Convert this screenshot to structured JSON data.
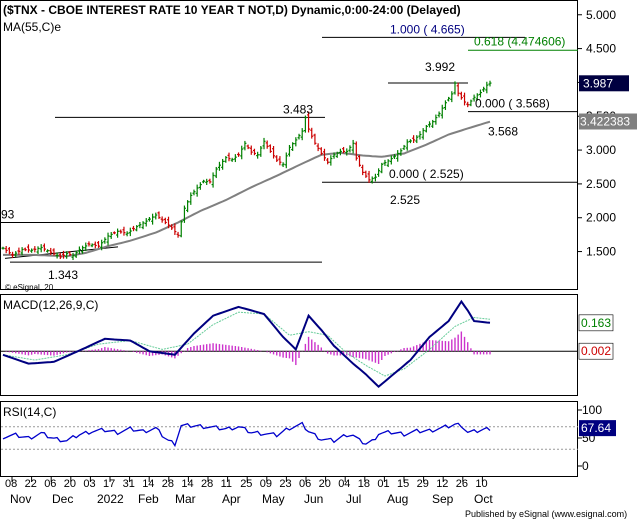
{
  "title": "($TNX - CBOE INTEREST RATE 10 YEAR T NOT,D) Dynamic,0:00-24:00 (Delayed)",
  "ma_label": "MA(55,C)e",
  "watermark": "© eSignal, 20",
  "footer": "Published by eSignal (www.esignal.com)",
  "colors": {
    "up_bar": "#008000",
    "down_bar": "#cc0000",
    "ma": "#808080",
    "macd_line": "#000080",
    "signal_line": "#66cc99",
    "histogram": "#cc33cc",
    "rsi_line": "#0000cc",
    "fib_618": "#008000",
    "fib_1000": "#000080",
    "price_tag_bg": "#000040",
    "ma_tag_bg": "#808080",
    "macd_tag_fg": "#008000",
    "hist_tag_fg": "#cc0000",
    "rsi_tag_bg": "#000080"
  },
  "chart_data": [
    {
      "type": "candlestick",
      "title": "$TNX daily",
      "y_ticks": [
        "5.000",
        "4.500",
        "4.000",
        "3.500",
        "3.000",
        "2.500",
        "2.000",
        "1.500"
      ],
      "ylim": [
        1.05,
        5.1
      ],
      "last_price": "3.987",
      "ma_last": "3.422383",
      "ma_period": 55,
      "x_date_labels": [
        "08",
        "22",
        "06",
        "20",
        "03",
        "17",
        "31",
        "14",
        "28",
        "14",
        "28",
        "11",
        "25",
        "09",
        "23",
        "06",
        "20",
        "04",
        "18",
        "01",
        "15",
        "29",
        "12",
        "26",
        "10"
      ],
      "x_month_labels": [
        "Nov",
        "Dec",
        "2022",
        "Feb",
        "Mar",
        "Apr",
        "May",
        "Jun",
        "Jul",
        "Aug",
        "Sep",
        "Oct"
      ],
      "close_path": [
        [
          0,
          1.55
        ],
        [
          3,
          1.45
        ],
        [
          6,
          1.53
        ],
        [
          9,
          1.52
        ],
        [
          12,
          1.56
        ],
        [
          15,
          1.49
        ],
        [
          18,
          1.42
        ],
        [
          20,
          1.47
        ],
        [
          22,
          1.44
        ],
        [
          24,
          1.53
        ],
        [
          27,
          1.61
        ],
        [
          30,
          1.58
        ],
        [
          33,
          1.73
        ],
        [
          36,
          1.8
        ],
        [
          39,
          1.77
        ],
        [
          42,
          1.87
        ],
        [
          45,
          1.95
        ],
        [
          48,
          2.04
        ],
        [
          51,
          1.93
        ],
        [
          53,
          1.85
        ],
        [
          55,
          1.74
        ],
        [
          57,
          2.14
        ],
        [
          59,
          2.33
        ],
        [
          61,
          2.44
        ],
        [
          63,
          2.54
        ],
        [
          65,
          2.53
        ],
        [
          67,
          2.72
        ],
        [
          70,
          2.89
        ],
        [
          72,
          2.86
        ],
        [
          74,
          2.93
        ],
        [
          76,
          3.1
        ],
        [
          78,
          2.97
        ],
        [
          80,
          2.93
        ],
        [
          82,
          3.13
        ],
        [
          84,
          2.98
        ],
        [
          86,
          2.85
        ],
        [
          88,
          2.79
        ],
        [
          90,
          3.04
        ],
        [
          92,
          3.15
        ],
        [
          94,
          3.28
        ],
        [
          95,
          3.48
        ],
        [
          96,
          3.31
        ],
        [
          98,
          3.1
        ],
        [
          100,
          2.95
        ],
        [
          102,
          2.82
        ],
        [
          104,
          2.93
        ],
        [
          106,
          2.98
        ],
        [
          108,
          2.98
        ],
        [
          110,
          3.1
        ],
        [
          111,
          2.88
        ],
        [
          113,
          2.67
        ],
        [
          115,
          2.56
        ],
        [
          117,
          2.6
        ],
        [
          119,
          2.79
        ],
        [
          121,
          2.84
        ],
        [
          123,
          2.91
        ],
        [
          125,
          2.99
        ],
        [
          127,
          3.12
        ],
        [
          129,
          3.15
        ],
        [
          131,
          3.23
        ],
        [
          133,
          3.35
        ],
        [
          135,
          3.42
        ],
        [
          137,
          3.54
        ],
        [
          139,
          3.7
        ],
        [
          141,
          3.83
        ],
        [
          142,
          3.99
        ],
        [
          143,
          3.84
        ],
        [
          145,
          3.71
        ],
        [
          146,
          3.67
        ],
        [
          148,
          3.78
        ],
        [
          150,
          3.85
        ],
        [
          152,
          3.96
        ],
        [
          153,
          3.99
        ]
      ],
      "ma_path": [
        [
          0,
          1.45
        ],
        [
          10,
          1.45
        ],
        [
          20,
          1.43
        ],
        [
          26,
          1.48
        ],
        [
          33,
          1.58
        ],
        [
          40,
          1.66
        ],
        [
          48,
          1.78
        ],
        [
          55,
          1.93
        ],
        [
          62,
          2.1
        ],
        [
          70,
          2.26
        ],
        [
          78,
          2.45
        ],
        [
          86,
          2.62
        ],
        [
          94,
          2.8
        ],
        [
          100,
          2.93
        ],
        [
          106,
          2.96
        ],
        [
          113,
          2.92
        ],
        [
          119,
          2.9
        ],
        [
          126,
          2.95
        ],
        [
          133,
          3.08
        ],
        [
          140,
          3.23
        ],
        [
          146,
          3.32
        ],
        [
          153,
          3.42
        ]
      ],
      "annotations": [
        {
          "text": "3.992",
          "price": 3.992
        },
        {
          "text": "3.483",
          "price": 3.483
        },
        {
          "text": "3.568",
          "price": 3.568
        },
        {
          "text": "2.525",
          "price": 2.525
        },
        {
          "text": "1.343",
          "price": 1.343
        },
        {
          "text": "93",
          "price": 1.93
        },
        {
          "text": "0.000 ( 3.568)",
          "price": 3.568
        },
        {
          "text": "0.000 ( 2.525)",
          "price": 2.525
        },
        {
          "text": "0.618 (4.474606)",
          "price": 4.4746
        },
        {
          "text": "1.000 ( 4.665)",
          "price": 4.665
        }
      ]
    },
    {
      "type": "line",
      "title": "MACD(12,26,9,C)",
      "series": [
        {
          "name": "MACD",
          "path": [
            [
              0,
              -0.02
            ],
            [
              8,
              -0.07
            ],
            [
              16,
              -0.06
            ],
            [
              26,
              0.02
            ],
            [
              32,
              0.07
            ],
            [
              40,
              0.06
            ],
            [
              46,
              0.0
            ],
            [
              54,
              -0.02
            ],
            [
              60,
              0.1
            ],
            [
              66,
              0.2
            ],
            [
              74,
              0.25
            ],
            [
              82,
              0.21
            ],
            [
              88,
              0.08
            ],
            [
              92,
              0.01
            ],
            [
              96,
              0.2
            ],
            [
              100,
              0.12
            ],
            [
              104,
              0.03
            ],
            [
              110,
              -0.07
            ],
            [
              114,
              -0.13
            ],
            [
              118,
              -0.2
            ],
            [
              122,
              -0.14
            ],
            [
              128,
              -0.05
            ],
            [
              134,
              0.08
            ],
            [
              140,
              0.17
            ],
            [
              144,
              0.28
            ],
            [
              146,
              0.23
            ],
            [
              148,
              0.17
            ],
            [
              153,
              0.16
            ]
          ]
        },
        {
          "name": "Signal",
          "path": [
            [
              0,
              -0.02
            ],
            [
              10,
              -0.05
            ],
            [
              20,
              -0.02
            ],
            [
              30,
              0.04
            ],
            [
              40,
              0.06
            ],
            [
              50,
              0.01
            ],
            [
              58,
              0.04
            ],
            [
              66,
              0.15
            ],
            [
              74,
              0.22
            ],
            [
              82,
              0.21
            ],
            [
              90,
              0.09
            ],
            [
              96,
              0.11
            ],
            [
              102,
              0.09
            ],
            [
              108,
              -0.01
            ],
            [
              114,
              -0.08
            ],
            [
              120,
              -0.14
            ],
            [
              126,
              -0.1
            ],
            [
              134,
              0.01
            ],
            [
              142,
              0.14
            ],
            [
              148,
              0.19
            ],
            [
              153,
              0.18
            ]
          ]
        }
      ],
      "histogram_peak_indices": [
        30,
        60,
        95,
        144
      ],
      "y_range": [
        -0.23,
        0.3
      ],
      "last_macd": "0.163",
      "last_hist": "0.002"
    },
    {
      "type": "line",
      "title": "RSI(14,C)",
      "series": [
        {
          "name": "RSI",
          "path": [
            [
              0,
              52
            ],
            [
              4,
              55
            ],
            [
              8,
              50
            ],
            [
              12,
              58
            ],
            [
              16,
              49
            ],
            [
              20,
              45
            ],
            [
              24,
              56
            ],
            [
              28,
              62
            ],
            [
              32,
              64
            ],
            [
              36,
              60
            ],
            [
              40,
              66
            ],
            [
              44,
              62
            ],
            [
              48,
              67
            ],
            [
              50,
              55
            ],
            [
              52,
              45
            ],
            [
              54,
              40
            ],
            [
              56,
              72
            ],
            [
              60,
              72
            ],
            [
              64,
              70
            ],
            [
              70,
              66
            ],
            [
              74,
              70
            ],
            [
              78,
              60
            ],
            [
              82,
              58
            ],
            [
              86,
              55
            ],
            [
              90,
              68
            ],
            [
              94,
              74
            ],
            [
              96,
              62
            ],
            [
              100,
              48
            ],
            [
              104,
              45
            ],
            [
              108,
              56
            ],
            [
              110,
              55
            ],
            [
              112,
              45
            ],
            [
              114,
              40
            ],
            [
              116,
              44
            ],
            [
              118,
              58
            ],
            [
              122,
              60
            ],
            [
              126,
              57
            ],
            [
              130,
              62
            ],
            [
              134,
              63
            ],
            [
              138,
              68
            ],
            [
              142,
              74
            ],
            [
              144,
              73
            ],
            [
              146,
              60
            ],
            [
              148,
              61
            ],
            [
              150,
              64
            ],
            [
              153,
              67
            ]
          ]
        }
      ],
      "y_ticks": [
        "100",
        "50",
        "0"
      ],
      "last_rsi": "67.64"
    }
  ]
}
